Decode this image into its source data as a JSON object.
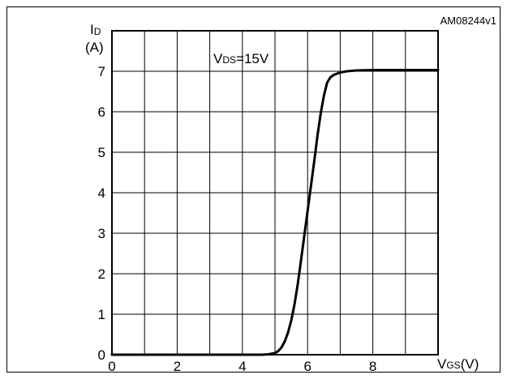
{
  "chart_data": {
    "type": "line",
    "figure_id": "AM08244v1",
    "condition_label": {
      "main": "V",
      "sub": "DS",
      "rest": "=15V"
    },
    "ylabel": {
      "main": "I",
      "sub": "D",
      "unit": "(A)"
    },
    "xlabel": {
      "main": "V",
      "sub": "GS",
      "unit": "(V)"
    },
    "xlim": [
      0,
      10
    ],
    "ylim": [
      0,
      8
    ],
    "xticks": [
      0,
      2,
      4,
      6,
      8
    ],
    "yticks": [
      0,
      1,
      2,
      3,
      4,
      5,
      6,
      7
    ],
    "xgrid": [
      0,
      1,
      2,
      3,
      4,
      5,
      6,
      7,
      8,
      9,
      10
    ],
    "ygrid": [
      0,
      1,
      2,
      3,
      4,
      5,
      6,
      7,
      8
    ],
    "grid": true,
    "series": [
      {
        "color": "#000000",
        "x": [
          0,
          1,
          2,
          3,
          4,
          4.6,
          4.8,
          5.0,
          5.1,
          5.2,
          5.3,
          5.4,
          5.5,
          5.6,
          5.7,
          5.8,
          5.9,
          6.0,
          6.1,
          6.2,
          6.3,
          6.4,
          6.5,
          6.6,
          6.7,
          6.8,
          7.0,
          7.2,
          7.5,
          8.0,
          9.0,
          10.0
        ],
        "y": [
          0,
          0,
          0,
          0,
          0,
          0,
          0.01,
          0.04,
          0.09,
          0.18,
          0.33,
          0.55,
          0.85,
          1.25,
          1.75,
          2.35,
          2.95,
          3.55,
          4.15,
          4.75,
          5.4,
          5.95,
          6.4,
          6.72,
          6.85,
          6.91,
          6.97,
          7.0,
          7.02,
          7.03,
          7.03,
          7.03
        ]
      }
    ]
  }
}
